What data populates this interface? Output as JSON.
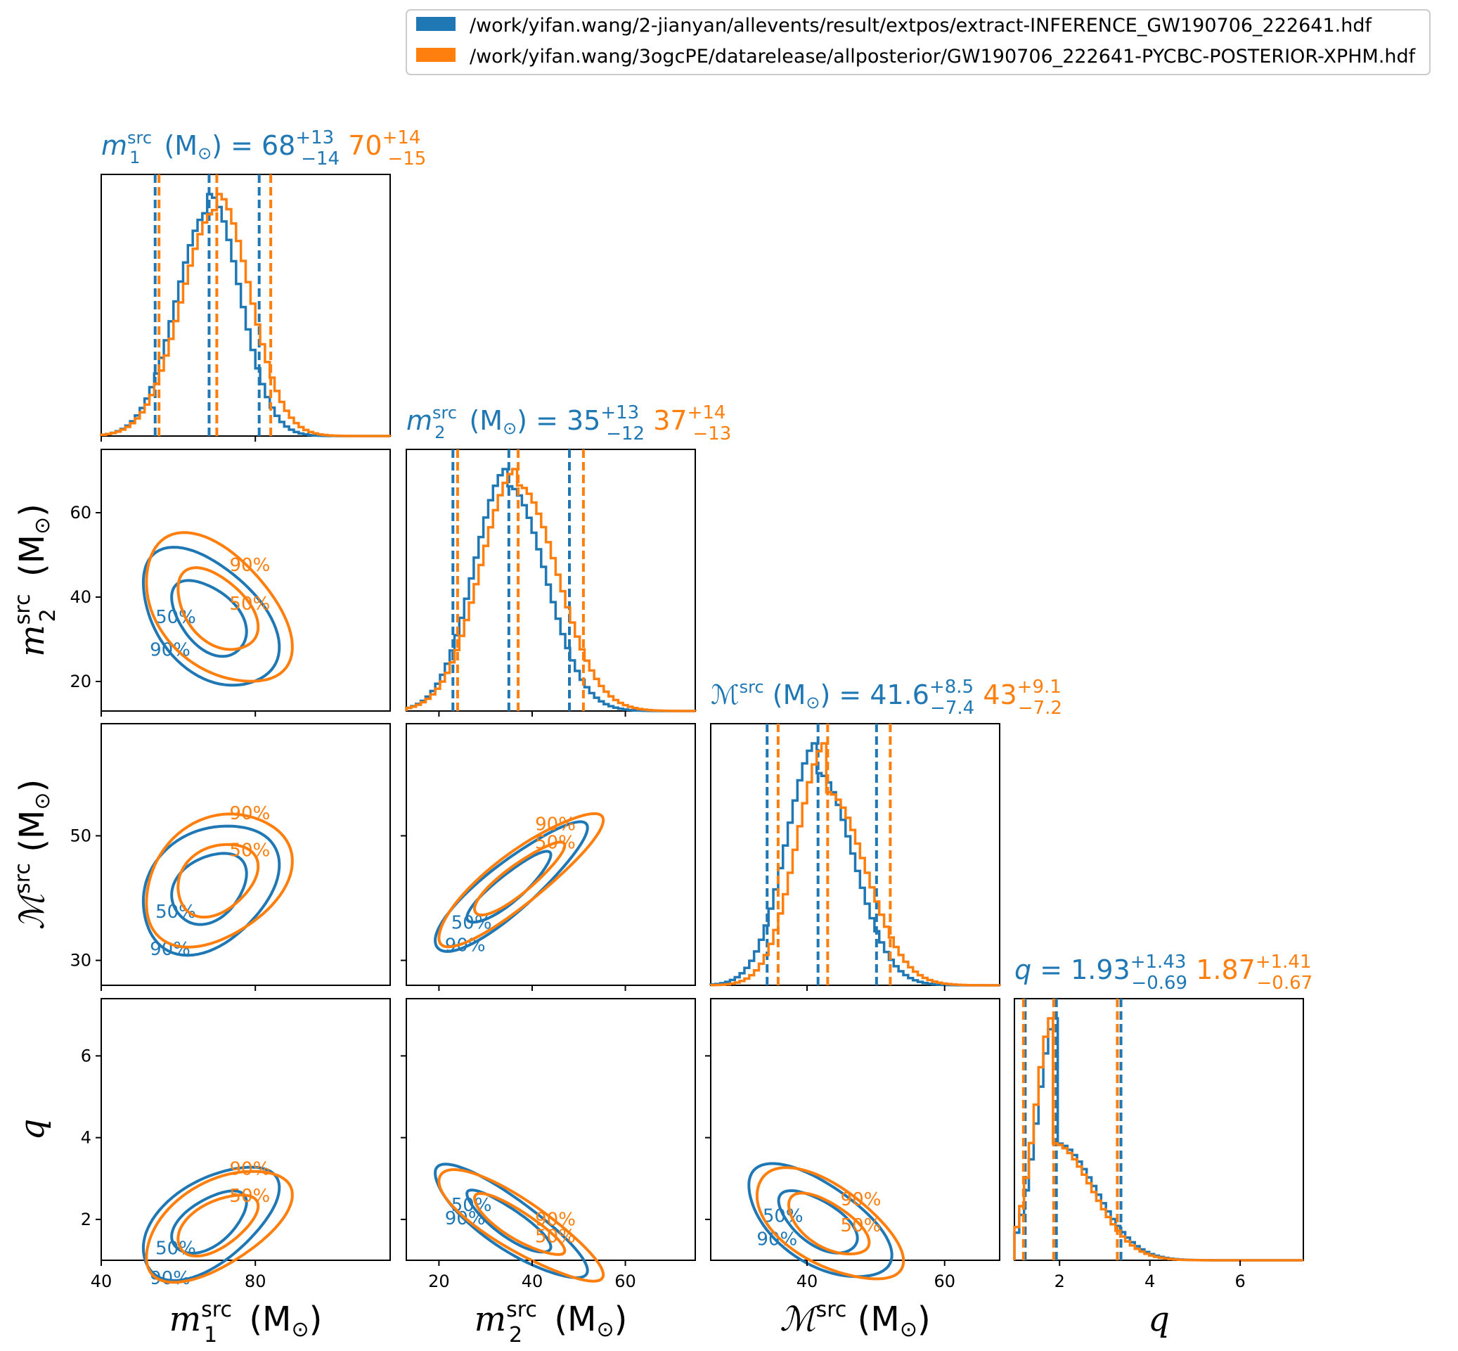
{
  "colors": {
    "blue": "#1f77b4",
    "orange": "#ff7f0e"
  },
  "legend": {
    "placement": "top-right",
    "entries": [
      "/work/yifan.wang/2-jianyan/allevents/result/extpos/extract-INFERENCE_GW190706_222641.hdf",
      "/work/yifan.wang/3ogcPE/datarelease/allposterior/GW190706_222641-PYCBC-POSTERIOR-XPHM.hdf"
    ]
  },
  "titles": [
    {
      "sym": "m",
      "sub": "1",
      "sup": "src",
      "unit": " (M",
      "unitsub": "⊙",
      "unitclose": ")",
      "eq": " = ",
      "v1": "68",
      "v1up": "+13",
      "v1dn": "−14",
      "v2": "70",
      "v2up": "+14",
      "v2dn": "−15"
    },
    {
      "sym": "m",
      "sub": "2",
      "sup": "src",
      "unit": " (M",
      "unitsub": "⊙",
      "unitclose": ")",
      "eq": " = ",
      "v1": "35",
      "v1up": "+13",
      "v1dn": "−12",
      "v2": "37",
      "v2up": "+14",
      "v2dn": "−13"
    },
    {
      "sym": "ℳ",
      "sub": "",
      "sup": "src",
      "unit": " (M",
      "unitsub": "⊙",
      "unitclose": ")",
      "eq": " = ",
      "v1": "41.6",
      "v1up": "+8.5",
      "v1dn": "−7.4",
      "v2": "43",
      "v2up": "+9.1",
      "v2dn": "−7.2"
    },
    {
      "sym": "q",
      "sub": "",
      "sup": "",
      "unit": "",
      "unitsub": "",
      "unitclose": "",
      "eq": " = ",
      "v1": "1.93",
      "v1up": "+1.43",
      "v1dn": "−0.69",
      "v2": "1.87",
      "v2up": "+1.41",
      "v2dn": "−0.67"
    }
  ],
  "axis_labels": [
    {
      "sym": "m",
      "sub": "1",
      "sup": "src",
      "unit": " (M",
      "unitsub": "⊙",
      "unitclose": ")"
    },
    {
      "sym": "m",
      "sub": "2",
      "sup": "src",
      "unit": " (M",
      "unitsub": "⊙",
      "unitclose": ")"
    },
    {
      "sym": "ℳ",
      "sub": "",
      "sup": "src",
      "unit": " (M",
      "unitsub": "⊙",
      "unitclose": ")"
    },
    {
      "sym": "q",
      "sub": "",
      "sup": "",
      "unit": "",
      "unitsub": "",
      "unitclose": ""
    }
  ],
  "contour_labels": [
    "50%",
    "90%"
  ],
  "chart_data": {
    "type": "corner",
    "params": [
      "m1_src",
      "m2_src",
      "mchirp_src",
      "q"
    ],
    "ranges": [
      [
        40,
        115
      ],
      [
        13,
        75
      ],
      [
        26,
        68
      ],
      [
        1.0,
        7.4
      ]
    ],
    "ticks": [
      [
        40,
        80
      ],
      [
        20,
        40,
        60
      ],
      [
        40,
        60
      ],
      [
        2,
        4,
        6
      ]
    ],
    "yticks": [
      [],
      [
        20,
        40,
        60
      ],
      [
        30,
        50
      ],
      [
        2,
        4,
        6
      ]
    ],
    "series": [
      {
        "name": "/work/yifan.wang/2-jianyan/allevents/result/extpos/extract-INFERENCE_GW190706_222641.hdf",
        "color": "blue",
        "medians": [
          68,
          35,
          41.6,
          1.93
        ],
        "err_plus": [
          13,
          13,
          8.5,
          1.43
        ],
        "err_minus": [
          14,
          12,
          7.4,
          0.69
        ],
        "sigmas": [
          [
            9.0,
            7.5,
            5.0,
            0.55
          ],
          [
            9.0,
            7.5,
            5.0,
            0.55
          ]
        ],
        "correlations": {
          "0-1": -0.45,
          "0-2": 0.3,
          "1-2": 0.88,
          "0-3": 0.55,
          "1-3": -0.85,
          "2-3": -0.6
        }
      },
      {
        "name": "/work/yifan.wang/3ogcPE/datarelease/allposterior/GW190706_222641-PYCBC-POSTERIOR-XPHM.hdf",
        "color": "orange",
        "medians": [
          70,
          37,
          43,
          1.87
        ],
        "err_plus": [
          14,
          14,
          9.1,
          1.41
        ],
        "err_minus": [
          15,
          13,
          7.2,
          0.67
        ],
        "sigmas": [
          [
            9.5,
            8.0,
            5.0,
            0.55
          ],
          [
            9.5,
            8.0,
            5.0,
            0.55
          ]
        ],
        "correlations": {
          "0-1": -0.45,
          "0-2": 0.3,
          "1-2": 0.88,
          "0-3": 0.55,
          "1-3": -0.85,
          "2-3": -0.6
        }
      }
    ],
    "contour_levels": [
      "50%",
      "90%"
    ],
    "histogram_bins": 60
  }
}
